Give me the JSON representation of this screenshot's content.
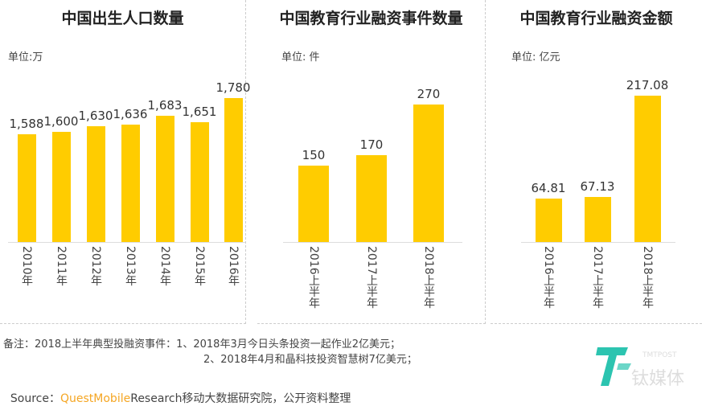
{
  "chart_data": [
    {
      "type": "bar",
      "title": "中国出生人口数量",
      "unit": "单位:万",
      "categories": [
        "2010年",
        "2011年",
        "2012年",
        "2013年",
        "2014年",
        "2015年",
        "2016年"
      ],
      "values": [
        1588,
        1600,
        1630,
        1636,
        1683,
        1651,
        1780
      ],
      "labels": [
        "1,588",
        "1,600",
        "1,630",
        "1,636",
        "1,683",
        "1,651",
        "1,780"
      ],
      "ylim": [
        1012,
        1800
      ],
      "color": "#FFCC00"
    },
    {
      "type": "bar",
      "title": "中国教育行业融资事件数量",
      "unit": "单位: 件",
      "categories": [
        "2016上半年",
        "2017上半年",
        "2018上半年"
      ],
      "values": [
        150,
        170,
        270
      ],
      "labels": [
        "150",
        "170",
        "270"
      ],
      "ylim": [
        0,
        300
      ],
      "color": "#FFCC00"
    },
    {
      "type": "bar",
      "title": "中国教育行业融资金额",
      "unit": "单位: 亿元",
      "categories": [
        "2016上半年",
        "2017上半年",
        "2018上半年"
      ],
      "values": [
        64.81,
        67.13,
        217.08
      ],
      "labels": [
        "64.81",
        "67.13",
        "217.08"
      ],
      "ylim": [
        0,
        240
      ],
      "color": "#FFCC00"
    }
  ],
  "notes": {
    "line1": "备注：2018上半年典型投融资事件：1、2018年3月今日头条投资一起作业2亿美元；",
    "line2": "2、2018年4月和晶科技投资智慧树7亿美元；",
    "source_label": "Source：",
    "source_brand": "QuestMobile",
    "source_rest": "Research移动大数据研究院，公开资料整理"
  },
  "logo": {
    "text": "钛媒体",
    "sub": "TMTPOST",
    "color": "#2CC4B0"
  }
}
